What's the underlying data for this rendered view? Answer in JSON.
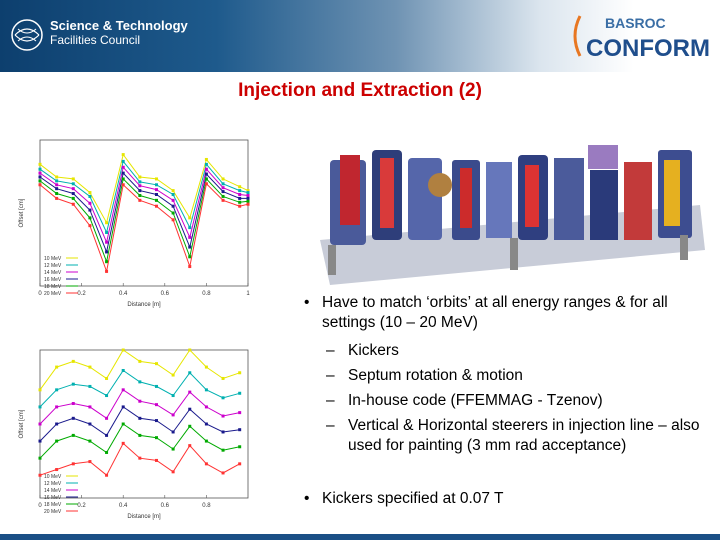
{
  "header": {
    "org_line1": "Science & Technology",
    "org_line2": "Facilities Council",
    "logo_top": "BASROC",
    "logo_bottom": "CONFORM"
  },
  "title": "Injection and Extraction (2)",
  "bullets": {
    "b1_marker": "•",
    "b1_text": "Have to match ‘orbits’ at all energy ranges & for all settings (10 – 20 MeV)",
    "sub": [
      {
        "marker": "–",
        "text": "Kickers"
      },
      {
        "marker": "–",
        "text": "Septum rotation & motion"
      },
      {
        "marker": "–",
        "text": "In-house code (FFEMMAG - Tzenov)"
      },
      {
        "marker": "–",
        "text": "Vertical & Horizontal steerers in injection line – also used for painting (3 mm rad acceptance)"
      }
    ],
    "b2_marker": "•",
    "b2_text": "Kickers specified at 0.07 T"
  },
  "chart_data": [
    {
      "type": "line",
      "xlabel": "Distance [m]",
      "ylabel": "Offset [cm]",
      "x": [
        0,
        0.08,
        0.16,
        0.24,
        0.32,
        0.4,
        0.48,
        0.56,
        0.64,
        0.72,
        0.8,
        0.88,
        0.96,
        1.0
      ],
      "xticks": [
        "0",
        "0.2",
        "0.4",
        "0.6",
        "0.8",
        "1"
      ],
      "series": [
        {
          "name": "10 MeV",
          "color": "#e6e600",
          "values": [
            2.5,
            1.2,
            1.0,
            -0.4,
            -3.5,
            3.5,
            1.2,
            1.0,
            -0.2,
            -3.0,
            3.0,
            1.0,
            0.2,
            -0.2
          ]
        },
        {
          "name": "12 MeV",
          "color": "#00b0b0",
          "values": [
            2.0,
            0.8,
            0.5,
            -0.8,
            -4.5,
            2.8,
            0.7,
            0.4,
            -0.6,
            -4.0,
            2.5,
            0.5,
            -0.2,
            -0.4
          ]
        },
        {
          "name": "14 MeV",
          "color": "#cc00cc",
          "values": [
            1.6,
            0.4,
            0.0,
            -1.5,
            -5.5,
            2.2,
            0.3,
            -0.1,
            -1.2,
            -5.0,
            2.0,
            0.1,
            -0.6,
            -0.7
          ]
        },
        {
          "name": "16 MeV",
          "color": "#1a1a8c",
          "values": [
            1.2,
            0.0,
            -0.5,
            -2.2,
            -6.5,
            1.6,
            -0.2,
            -0.6,
            -1.8,
            -6.0,
            1.5,
            -0.3,
            -1.0,
            -1.0
          ]
        },
        {
          "name": "18 MeV",
          "color": "#00aa00",
          "values": [
            0.8,
            -0.5,
            -1.0,
            -3.0,
            -7.5,
            1.0,
            -0.7,
            -1.2,
            -2.5,
            -7.0,
            1.0,
            -0.8,
            -1.4,
            -1.3
          ]
        },
        {
          "name": "20 MeV",
          "color": "#ff3333",
          "values": [
            0.4,
            -1.0,
            -1.6,
            -3.8,
            -8.5,
            0.4,
            -1.2,
            -1.8,
            -3.2,
            -8.0,
            0.5,
            -1.2,
            -1.8,
            -1.6
          ]
        }
      ],
      "ylim": [
        -10,
        5
      ]
    },
    {
      "type": "line",
      "xlabel": "Distance [m]",
      "ylabel": "Offset [cm]",
      "x": [
        0,
        0.08,
        0.16,
        0.24,
        0.32,
        0.4,
        0.48,
        0.56,
        0.64,
        0.72,
        0.8,
        0.88,
        0.96
      ],
      "xticks": [
        "0",
        "0.2",
        "0.4",
        "0.6",
        "0.8"
      ],
      "series": [
        {
          "name": "10 MeV",
          "color": "#e6e600",
          "values": [
            9.5,
            11.5,
            12.0,
            11.5,
            10.5,
            13.0,
            12.0,
            11.8,
            10.8,
            13.0,
            11.5,
            10.5,
            11.0
          ]
        },
        {
          "name": "12 MeV",
          "color": "#00b0b0",
          "values": [
            8.0,
            9.5,
            10.0,
            9.8,
            9.0,
            11.2,
            10.2,
            9.8,
            9.0,
            11.0,
            9.5,
            8.8,
            9.2
          ]
        },
        {
          "name": "14 MeV",
          "color": "#cc00cc",
          "values": [
            6.5,
            8.0,
            8.3,
            8.0,
            7.0,
            9.5,
            8.5,
            8.2,
            7.3,
            9.3,
            8.0,
            7.2,
            7.5
          ]
        },
        {
          "name": "16 MeV",
          "color": "#1a1a8c",
          "values": [
            5.0,
            6.5,
            7.0,
            6.5,
            5.5,
            8.0,
            7.0,
            6.8,
            5.8,
            7.8,
            6.5,
            5.8,
            6.0
          ]
        },
        {
          "name": "18 MeV",
          "color": "#00aa00",
          "values": [
            3.5,
            5.0,
            5.5,
            5.0,
            4.0,
            6.5,
            5.5,
            5.3,
            4.3,
            6.3,
            5.0,
            4.2,
            4.5
          ]
        },
        {
          "name": "20 MeV",
          "color": "#ff3333",
          "values": [
            2.0,
            2.5,
            3.0,
            3.2,
            2.0,
            4.8,
            3.5,
            3.3,
            2.3,
            4.6,
            3.0,
            2.2,
            3.0
          ]
        }
      ],
      "ylim": [
        0,
        13
      ]
    }
  ]
}
